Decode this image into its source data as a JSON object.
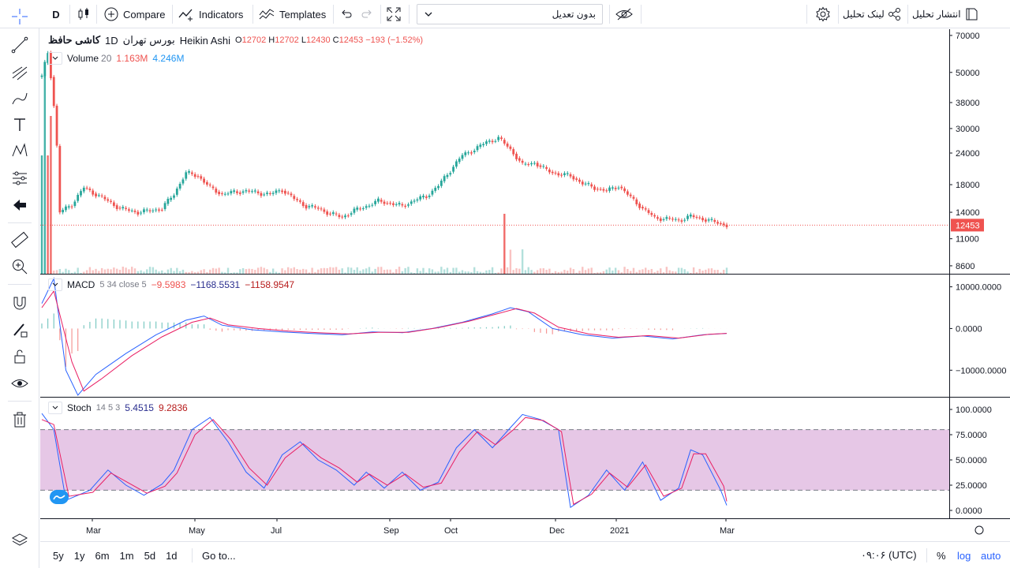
{
  "toolbar": {
    "interval": "D",
    "compare": "Compare",
    "indicators": "Indicators",
    "templates": "Templates",
    "layout_name": "بدون تعدیل",
    "link": "لینک تحلیل",
    "publish": "انتشار تحلیل"
  },
  "symbol_legend": {
    "name": "کاشی حافظ",
    "interval": "1D",
    "exchange": "بورس تهران",
    "chart_type": "Heikin Ashi",
    "o_label": "O",
    "o": "12702",
    "h_label": "H",
    "h": "12702",
    "l_label": "L",
    "l": "12430",
    "c_label": "C",
    "c": "12453",
    "change": "−193 (−1.52%)"
  },
  "volume_legend": {
    "name": "Volume",
    "param": "20",
    "v1": "1.163M",
    "v2": "4.246M"
  },
  "macd_legend": {
    "name": "MACD",
    "params": "5 34 close 5",
    "v1": "−9.5983",
    "v2": "−1168.5531",
    "v3": "−1158.9547"
  },
  "stoch_legend": {
    "name": "Stoch",
    "params": "14 5 3",
    "v1": "5.4515",
    "v2": "9.2836"
  },
  "price_axis": {
    "ticks": [
      "70000",
      "50000",
      "38000",
      "30000",
      "24000",
      "18000",
      "14000",
      "11000",
      "8600"
    ],
    "last_price": "12453"
  },
  "macd_axis": {
    "ticks": [
      "10000.0000",
      "0.0000",
      "−10000.0000"
    ]
  },
  "stoch_axis": {
    "ticks": [
      "100.0000",
      "75.0000",
      "50.0000",
      "25.0000",
      "0.0000"
    ]
  },
  "time_axis": {
    "labels": [
      "Mar",
      "May",
      "Jul",
      "Sep",
      "Oct",
      "Dec",
      "2021",
      "Mar"
    ]
  },
  "bottom": {
    "ranges": [
      "5y",
      "1y",
      "6m",
      "1m",
      "5d",
      "1d"
    ],
    "goto": "Go to...",
    "clock": "۰۹:۰۶ (UTC)",
    "percent": "%",
    "log": "log",
    "auto": "auto"
  },
  "colors": {
    "up": "#26a69a",
    "down": "#ef5350",
    "macd": "#2962ff",
    "signal": "#e91e63",
    "band": "#c882c8",
    "accent": "#2962ff"
  },
  "chart_data": [
    {
      "type": "line",
      "title": "",
      "log_scale": true,
      "y_axis_ticks": [
        70000,
        50000,
        38000,
        30000,
        24000,
        18000,
        14000,
        11000,
        8600
      ],
      "x_axis_ticks": [
        "Mar",
        "May",
        "Jul",
        "Sep",
        "Oct",
        "Dec",
        "2021",
        "Mar"
      ],
      "series": [
        {
          "points": [
            [
              0,
              48000
            ],
            [
              2,
              60000
            ],
            [
              6,
              14000
            ],
            [
              10,
              15000
            ],
            [
              14,
              17500
            ],
            [
              20,
              16000
            ],
            [
              26,
              14500
            ],
            [
              32,
              14000
            ],
            [
              36,
              14200
            ],
            [
              40,
              14500
            ],
            [
              44,
              16500
            ],
            [
              48,
              20000
            ],
            [
              52,
              19500
            ],
            [
              56,
              17500
            ],
            [
              60,
              16500
            ],
            [
              64,
              16800
            ],
            [
              68,
              17000
            ],
            [
              72,
              16700
            ],
            [
              76,
              16500
            ],
            [
              80,
              17200
            ],
            [
              84,
              15800
            ],
            [
              88,
              14800
            ],
            [
              92,
              14500
            ],
            [
              96,
              13800
            ],
            [
              100,
              13400
            ],
            [
              104,
              14200
            ],
            [
              108,
              14800
            ],
            [
              112,
              15500
            ],
            [
              116,
              15200
            ],
            [
              120,
              14800
            ],
            [
              124,
              15600
            ],
            [
              128,
              16200
            ],
            [
              132,
              17800
            ],
            [
              136,
              20500
            ],
            [
              140,
              23500
            ],
            [
              144,
              24800
            ],
            [
              148,
              26500
            ],
            [
              152,
              27500
            ],
            [
              156,
              24800
            ],
            [
              160,
              21500
            ],
            [
              164,
              22000
            ],
            [
              168,
              20500
            ],
            [
              172,
              19800
            ],
            [
              176,
              19500
            ],
            [
              180,
              18200
            ],
            [
              184,
              17500
            ],
            [
              188,
              17000
            ],
            [
              192,
              17800
            ],
            [
              196,
              16000
            ],
            [
              200,
              14500
            ],
            [
              204,
              13300
            ],
            [
              208,
              13200
            ],
            [
              212,
              13000
            ],
            [
              216,
              13500
            ],
            [
              220,
              13200
            ],
            [
              224,
              12800
            ],
            [
              228,
              12453
            ]
          ]
        }
      ],
      "last_price": 12453
    },
    {
      "type": "bar",
      "title": "Volume",
      "note": "volume histogram in main pane; legend values 1.163M, 4.246M"
    },
    {
      "type": "line",
      "title": "MACD",
      "y_axis_ticks": [
        10000,
        0,
        -10000
      ],
      "series": [
        {
          "name": "MACD",
          "points": [
            [
              0,
              6000
            ],
            [
              4,
              12000
            ],
            [
              8,
              -10000
            ],
            [
              12,
              -16000
            ],
            [
              18,
              -11000
            ],
            [
              28,
              -6000
            ],
            [
              38,
              -1500
            ],
            [
              48,
              2000
            ],
            [
              54,
              3000
            ],
            [
              60,
              800
            ],
            [
              70,
              -300
            ],
            [
              80,
              -800
            ],
            [
              90,
              -1200
            ],
            [
              100,
              -1500
            ],
            [
              110,
              -800
            ],
            [
              120,
              -1000
            ],
            [
              130,
              0
            ],
            [
              140,
              1500
            ],
            [
              150,
              3500
            ],
            [
              156,
              5000
            ],
            [
              162,
              4000
            ],
            [
              170,
              0
            ],
            [
              180,
              -1500
            ],
            [
              190,
              -2300
            ],
            [
              200,
              -1800
            ],
            [
              210,
              -2500
            ],
            [
              220,
              -1500
            ],
            [
              228,
              -1169
            ]
          ]
        },
        {
          "name": "Signal",
          "points": [
            [
              0,
              5000
            ],
            [
              4,
              9000
            ],
            [
              10,
              -8000
            ],
            [
              14,
              -15000
            ],
            [
              20,
              -12000
            ],
            [
              30,
              -6500
            ],
            [
              40,
              -2000
            ],
            [
              50,
              1500
            ],
            [
              56,
              2500
            ],
            [
              62,
              900
            ],
            [
              72,
              0
            ],
            [
              82,
              -600
            ],
            [
              92,
              -1000
            ],
            [
              102,
              -1300
            ],
            [
              112,
              -900
            ],
            [
              122,
              -900
            ],
            [
              132,
              200
            ],
            [
              142,
              1700
            ],
            [
              152,
              3600
            ],
            [
              158,
              4800
            ],
            [
              164,
              3700
            ],
            [
              172,
              300
            ],
            [
              182,
              -1300
            ],
            [
              192,
              -2100
            ],
            [
              202,
              -1700
            ],
            [
              212,
              -2300
            ],
            [
              222,
              -1400
            ],
            [
              228,
              -1159
            ]
          ]
        }
      ]
    },
    {
      "type": "line",
      "title": "Stoch",
      "y_axis_ticks": [
        100,
        75,
        50,
        25,
        0
      ],
      "bands": [
        20,
        80
      ],
      "series": [
        {
          "name": "%K",
          "points": [
            [
              0,
              96
            ],
            [
              4,
              80
            ],
            [
              8,
              10
            ],
            [
              16,
              20
            ],
            [
              22,
              40
            ],
            [
              28,
              25
            ],
            [
              34,
              15
            ],
            [
              40,
              26
            ],
            [
              44,
              40
            ],
            [
              50,
              80
            ],
            [
              56,
              92
            ],
            [
              62,
              68
            ],
            [
              68,
              38
            ],
            [
              74,
              22
            ],
            [
              80,
              55
            ],
            [
              86,
              68
            ],
            [
              92,
              50
            ],
            [
              98,
              40
            ],
            [
              104,
              25
            ],
            [
              108,
              38
            ],
            [
              114,
              22
            ],
            [
              120,
              38
            ],
            [
              126,
              20
            ],
            [
              132,
              28
            ],
            [
              138,
              62
            ],
            [
              144,
              80
            ],
            [
              150,
              62
            ],
            [
              156,
              82
            ],
            [
              160,
              95
            ],
            [
              166,
              90
            ],
            [
              172,
              80
            ],
            [
              176,
              3
            ],
            [
              182,
              15
            ],
            [
              188,
              40
            ],
            [
              194,
              20
            ],
            [
              200,
              48
            ],
            [
              206,
              10
            ],
            [
              212,
              22
            ],
            [
              216,
              60
            ],
            [
              220,
              55
            ],
            [
              226,
              20
            ],
            [
              228,
              5
            ]
          ]
        },
        {
          "name": "%D",
          "points": [
            [
              0,
              90
            ],
            [
              4,
              85
            ],
            [
              9,
              14
            ],
            [
              17,
              18
            ],
            [
              23,
              37
            ],
            [
              29,
              27
            ],
            [
              35,
              17
            ],
            [
              41,
              24
            ],
            [
              45,
              37
            ],
            [
              51,
              75
            ],
            [
              57,
              90
            ],
            [
              63,
              70
            ],
            [
              69,
              42
            ],
            [
              75,
              25
            ],
            [
              81,
              52
            ],
            [
              87,
              66
            ],
            [
              93,
              52
            ],
            [
              99,
              42
            ],
            [
              105,
              28
            ],
            [
              109,
              36
            ],
            [
              115,
              25
            ],
            [
              121,
              36
            ],
            [
              127,
              23
            ],
            [
              133,
              27
            ],
            [
              139,
              58
            ],
            [
              145,
              78
            ],
            [
              151,
              65
            ],
            [
              157,
              80
            ],
            [
              161,
              92
            ],
            [
              167,
              89
            ],
            [
              173,
              78
            ],
            [
              177,
              6
            ],
            [
              183,
              16
            ],
            [
              189,
              37
            ],
            [
              195,
              23
            ],
            [
              201,
              45
            ],
            [
              207,
              14
            ],
            [
              213,
              22
            ],
            [
              217,
              56
            ],
            [
              221,
              56
            ],
            [
              227,
              24
            ],
            [
              228,
              9
            ]
          ]
        }
      ]
    }
  ]
}
